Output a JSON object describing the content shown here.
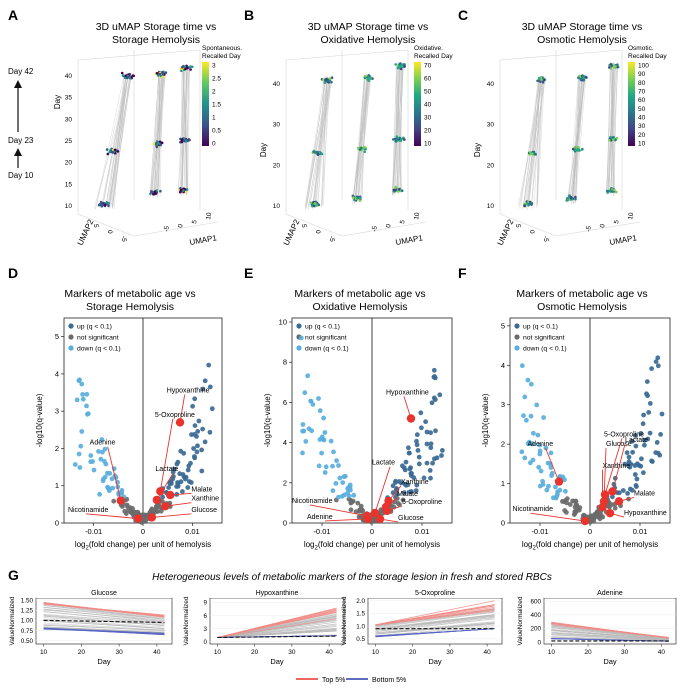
{
  "panels": {
    "A": "A",
    "B": "B",
    "C": "C",
    "D": "D",
    "E": "E",
    "F": "F",
    "G": "G"
  },
  "day_annotations": [
    "Day 42",
    "Day 23",
    "Day 10"
  ],
  "umap_labels": {
    "day": "Day",
    "umap1": "UMAP1",
    "umap2": "UMAP2"
  },
  "umap_panels": [
    {
      "title_line1": "3D uMAP Storage time vs",
      "title_line2": "Storage Hemolysis",
      "legend_line1": "Spontaneous.",
      "legend_line2": "Recalled Day",
      "legend_ticks": [
        "3",
        "2.5",
        "2",
        "1.5",
        "1",
        "0.5",
        "0"
      ],
      "legend_colors": [
        "#fde725",
        "#5ec962",
        "#21918c",
        "#3b528b",
        "#440154"
      ],
      "day_ticks": [
        "40",
        "35",
        "30",
        "25",
        "20",
        "15",
        "10"
      ],
      "umap1_ticks": [
        "-5",
        "0",
        "5",
        "10"
      ],
      "umap2_ticks": [
        "-5",
        "0",
        "5"
      ]
    },
    {
      "title_line1": "3D uMAP Storage time vs",
      "title_line2": "Oxidative Hemolysis",
      "legend_line1": "Oxidative.",
      "legend_line2": "Recalled Day",
      "legend_ticks": [
        "70",
        "60",
        "50",
        "40",
        "30",
        "20",
        "10"
      ],
      "legend_colors": [
        "#fde725",
        "#7ad151",
        "#22a884",
        "#2a788e",
        "#414487",
        "#440154"
      ],
      "day_ticks": [
        "40",
        "30",
        "20",
        "10"
      ],
      "umap1_ticks": [
        "-5",
        "0",
        "5",
        "10"
      ],
      "umap2_ticks": [
        "-5",
        "0",
        "5"
      ]
    },
    {
      "title_line1": "3D uMAP Storage time vs",
      "title_line2": "Osmotic Hemolysis",
      "legend_line1": "Osmotic.",
      "legend_line2": "Recalled Day",
      "legend_ticks": [
        "100",
        "90",
        "80",
        "70",
        "60",
        "50",
        "40",
        "30",
        "20",
        "10"
      ],
      "legend_colors": [
        "#fde725",
        "#7ad151",
        "#22a884",
        "#2a788e",
        "#414487",
        "#440154"
      ],
      "day_ticks": [
        "40",
        "30",
        "20",
        "10"
      ],
      "umap1_ticks": [
        "-5",
        "0",
        "5",
        "10"
      ],
      "umap2_ticks": [
        "-5",
        "0",
        "5"
      ]
    }
  ],
  "volcano_common": {
    "xlabel_parts": [
      "log",
      "2",
      "(fold change) per unit of hemolysis"
    ],
    "ylabel": "-log10(q-value)",
    "legend": [
      "up (q < 0.1)",
      "not significant",
      "down (q < 0.1)"
    ],
    "colors": {
      "up": "#3b6a94",
      "ns": "#6b6b6b",
      "down": "#5aaedc",
      "marker": "#e8342c"
    }
  },
  "chart_data": [
    {
      "type": "scatter",
      "id": "D",
      "title": "Markers of metabolic age vs Storage Hemolysis",
      "title_line1": "Markers of metabolic age vs",
      "title_line2": "Storage Hemolysis",
      "xlim": [
        -0.016,
        0.016
      ],
      "ylim": [
        0,
        5.5
      ],
      "x_ticks": [
        -0.01,
        0,
        0.01
      ],
      "x_tick_labels": [
        "-0.01",
        "0",
        "0.01"
      ],
      "y_ticks": [
        0,
        1,
        2,
        3,
        4,
        5
      ],
      "y_tick_labels": [
        "0",
        "1",
        "2",
        "3",
        "4",
        "5"
      ],
      "markers": [
        {
          "name": "Hypoxanthine",
          "x": 0.0075,
          "y": 2.7,
          "lx": 0.0048,
          "ly": 3.5
        },
        {
          "name": "5-Oxoproline",
          "x": 0.0035,
          "y": 0.85,
          "lx": 0.0024,
          "ly": 2.85
        },
        {
          "name": "Adenine",
          "x": -0.0045,
          "y": 0.6,
          "lx": -0.0108,
          "ly": 2.1
        },
        {
          "name": "Lactate",
          "x": 0.0028,
          "y": 0.62,
          "lx": 0.0025,
          "ly": 1.4
        },
        {
          "name": "Malate",
          "x": 0.0055,
          "y": 0.75,
          "lx": 0.0098,
          "ly": 0.85
        },
        {
          "name": "Xanthine",
          "x": 0.0045,
          "y": 0.45,
          "lx": 0.0098,
          "ly": 0.6
        },
        {
          "name": "Glucose",
          "x": 0.0018,
          "y": 0.15,
          "lx": 0.0098,
          "ly": 0.3
        },
        {
          "name": "Nicotinamide",
          "x": -0.001,
          "y": 0.12,
          "lx": -0.0152,
          "ly": 0.3
        }
      ]
    },
    {
      "type": "scatter",
      "id": "E",
      "title": "Markers of metabolic age vs Oxidative Hemolysis",
      "title_line1": "Markers of metabolic age vs",
      "title_line2": "Oxidative Hemolysis",
      "xlim": [
        -0.016,
        0.016
      ],
      "ylim": [
        0,
        10.2
      ],
      "x_ticks": [
        -0.01,
        0,
        0.01
      ],
      "x_tick_labels": [
        "-0.01",
        "0",
        "0.01"
      ],
      "y_ticks": [
        0,
        2,
        4,
        6,
        8,
        10
      ],
      "y_tick_labels": [
        "0",
        "2",
        "4",
        "6",
        "8",
        "10"
      ],
      "markers": [
        {
          "name": "Hypoxanthine",
          "x": 0.0078,
          "y": 5.2,
          "lx": 0.0028,
          "ly": 6.4
        },
        {
          "name": "Lactate",
          "x": 0.0006,
          "y": 0.5,
          "lx": 0.0,
          "ly": 2.9
        },
        {
          "name": "Xanthine",
          "x": 0.0033,
          "y": 1.1,
          "lx": 0.0058,
          "ly": 1.95
        },
        {
          "name": "Malate",
          "x": 0.0028,
          "y": 0.8,
          "lx": 0.005,
          "ly": 1.35
        },
        {
          "name": "5-Oxoproline",
          "x": 0.003,
          "y": 0.6,
          "lx": 0.006,
          "ly": 0.95
        },
        {
          "name": "Glucose",
          "x": 0.0016,
          "y": 0.2,
          "lx": 0.0052,
          "ly": 0.15
        },
        {
          "name": "Nicotinamide",
          "x": -0.001,
          "y": 0.35,
          "lx": -0.016,
          "ly": 1.0
        },
        {
          "name": "Adenine",
          "x": -0.0008,
          "y": 0.2,
          "lx": -0.013,
          "ly": 0.2
        }
      ]
    },
    {
      "type": "scatter",
      "id": "F",
      "title": "Markers of metabolic age vs Osmotic Hemolysis",
      "title_line1": "Markers of metabolic age vs",
      "title_line2": "Osmotic Hemolysis",
      "xlim": [
        -0.016,
        0.016
      ],
      "ylim": [
        0,
        5.2
      ],
      "x_ticks": [
        -0.01,
        0,
        0.01
      ],
      "x_tick_labels": [
        "-0.01",
        "0",
        "0.01"
      ],
      "y_ticks": [
        0,
        1,
        2,
        3,
        4,
        5
      ],
      "y_tick_labels": [
        "0",
        "1",
        "2",
        "3",
        "4",
        "5"
      ],
      "markers": [
        {
          "name": "Adenine",
          "x": -0.0062,
          "y": 1.05,
          "lx": -0.0125,
          "ly": 1.95
        },
        {
          "name": "5-Oxoproline",
          "x": 0.003,
          "y": 0.72,
          "lx": 0.0028,
          "ly": 2.2
        },
        {
          "name": "Glucose",
          "x": 0.0028,
          "y": 0.55,
          "lx": 0.0032,
          "ly": 1.95
        },
        {
          "name": "Lactate",
          "x": 0.0045,
          "y": 0.8,
          "lx": 0.007,
          "ly": 2.05
        },
        {
          "name": "Xanthine",
          "x": 0.0025,
          "y": 0.4,
          "lx": 0.0025,
          "ly": 1.4
        },
        {
          "name": "Malate",
          "x": 0.0058,
          "y": 0.55,
          "lx": 0.0088,
          "ly": 0.7
        },
        {
          "name": "Hypoxanthine",
          "x": 0.004,
          "y": 0.25,
          "lx": 0.0068,
          "ly": 0.2
        },
        {
          "name": "Nicotinamide",
          "x": -0.001,
          "y": 0.05,
          "lx": -0.0155,
          "ly": 0.3
        }
      ]
    },
    {
      "type": "line",
      "id": "G",
      "title": "Heterogeneous levels of metabolic markers of the storage lesion in fresh and stored RBCs",
      "xlabel": "Day",
      "ylabel": "ValueNormalized",
      "legend": [
        "Top 5%",
        "Bottom 5%"
      ],
      "legend_colors": [
        "#e8342c",
        "#2a3fa8"
      ],
      "subplots": [
        {
          "title": "Glucose",
          "x_ticks": [
            10,
            20,
            30,
            40
          ],
          "xlim": [
            8,
            44
          ],
          "ylim": [
            0.42,
            1.55
          ],
          "y_ticks": [
            0.5,
            0.75,
            1.0,
            1.25,
            1.5
          ],
          "y_tick_labels": [
            "0.50",
            "0.75",
            "1.00",
            "1.25",
            "1.50"
          ],
          "mean_line": [
            [
              10,
              1.0
            ],
            [
              42,
              0.95
            ]
          ],
          "top_line": [
            [
              10,
              1.42
            ],
            [
              42,
              1.1
            ]
          ],
          "bottom_line": [
            [
              10,
              0.8
            ],
            [
              42,
              0.66
            ]
          ]
        },
        {
          "title": "Hypoxanthine",
          "x_ticks": [
            10,
            20,
            30,
            40
          ],
          "xlim": [
            8,
            44
          ],
          "ylim": [
            -0.5,
            10
          ],
          "y_ticks": [
            0,
            3,
            6,
            9
          ],
          "y_tick_labels": [
            "0",
            "3",
            "6",
            "9"
          ],
          "mean_line": [
            [
              10,
              1.0
            ],
            [
              42,
              1.3
            ]
          ],
          "top_line": [
            [
              10,
              1.0
            ],
            [
              42,
              7.0
            ]
          ],
          "bottom_line": [
            [
              10,
              1.0
            ],
            [
              42,
              1.4
            ]
          ]
        },
        {
          "title": "5-Oxoproline",
          "x_ticks": [
            10,
            20,
            30,
            40
          ],
          "xlim": [
            8,
            44
          ],
          "ylim": [
            0.3,
            2.1
          ],
          "y_ticks": [
            0.5,
            1.0,
            1.5,
            2.0
          ],
          "y_tick_labels": [
            "0.5",
            "1.0",
            "1.5",
            "2.0"
          ],
          "mean_line": [
            [
              10,
              0.9
            ],
            [
              42,
              0.9
            ]
          ],
          "top_line": [
            [
              10,
              1.05
            ],
            [
              42,
              1.75
            ]
          ],
          "bottom_line": [
            [
              10,
              0.6
            ],
            [
              42,
              0.9
            ]
          ]
        },
        {
          "title": "Adenine",
          "x_ticks": [
            10,
            20,
            30,
            40
          ],
          "xlim": [
            8,
            44
          ],
          "ylim": [
            -30,
            650
          ],
          "y_ticks": [
            0,
            200,
            400,
            600
          ],
          "y_tick_labels": [
            "0",
            "200",
            "400",
            "600"
          ],
          "mean_line": [
            [
              10,
              15
            ],
            [
              42,
              15
            ]
          ],
          "top_line": [
            [
              10,
              280
            ],
            [
              42,
              60
            ]
          ],
          "bottom_line": [
            [
              10,
              50
            ],
            [
              42,
              10
            ]
          ]
        }
      ]
    }
  ]
}
